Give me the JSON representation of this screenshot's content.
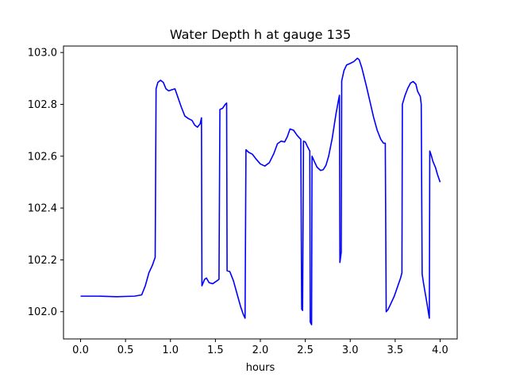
{
  "chart_data": {
    "type": "line",
    "title": "Water Depth h at gauge 135",
    "xlabel": "hours",
    "ylabel": "",
    "xlim": [
      -0.19,
      4.19
    ],
    "ylim": [
      101.895,
      103.025
    ],
    "grid": false,
    "x_ticks": [
      0.0,
      0.5,
      1.0,
      1.5,
      2.0,
      2.5,
      3.0,
      3.5,
      4.0
    ],
    "x_tick_labels": [
      "0.0",
      "0.5",
      "1.0",
      "1.5",
      "2.0",
      "2.5",
      "3.0",
      "3.5",
      "4.0"
    ],
    "y_ticks": [
      102.0,
      102.2,
      102.4,
      102.6,
      102.8,
      103.0
    ],
    "y_tick_labels": [
      "102.0",
      "102.2",
      "102.4",
      "102.6",
      "102.8",
      "103.0"
    ],
    "series": [
      {
        "color": "#0000ff",
        "points": [
          [
            0.0,
            102.06
          ],
          [
            0.2,
            102.06
          ],
          [
            0.4,
            102.058
          ],
          [
            0.6,
            102.06
          ],
          [
            0.68,
            102.065
          ],
          [
            0.72,
            102.1
          ],
          [
            0.76,
            102.15
          ],
          [
            0.8,
            102.18
          ],
          [
            0.83,
            102.21
          ],
          [
            0.84,
            102.86
          ],
          [
            0.86,
            102.885
          ],
          [
            0.89,
            102.893
          ],
          [
            0.92,
            102.885
          ],
          [
            0.95,
            102.86
          ],
          [
            0.98,
            102.852
          ],
          [
            1.02,
            102.857
          ],
          [
            1.05,
            102.86
          ],
          [
            1.08,
            102.83
          ],
          [
            1.12,
            102.79
          ],
          [
            1.16,
            102.755
          ],
          [
            1.2,
            102.745
          ],
          [
            1.24,
            102.738
          ],
          [
            1.27,
            102.72
          ],
          [
            1.3,
            102.712
          ],
          [
            1.33,
            102.725
          ],
          [
            1.345,
            102.748
          ],
          [
            1.35,
            102.1
          ],
          [
            1.38,
            102.125
          ],
          [
            1.4,
            102.13
          ],
          [
            1.43,
            102.112
          ],
          [
            1.47,
            102.108
          ],
          [
            1.52,
            102.12
          ],
          [
            1.54,
            102.125
          ],
          [
            1.55,
            102.78
          ],
          [
            1.58,
            102.785
          ],
          [
            1.61,
            102.8
          ],
          [
            1.625,
            102.805
          ],
          [
            1.63,
            102.158
          ],
          [
            1.66,
            102.155
          ],
          [
            1.7,
            102.12
          ],
          [
            1.74,
            102.07
          ],
          [
            1.78,
            102.02
          ],
          [
            1.81,
            101.99
          ],
          [
            1.83,
            101.975
          ],
          [
            1.84,
            102.625
          ],
          [
            1.87,
            102.615
          ],
          [
            1.91,
            102.608
          ],
          [
            1.95,
            102.59
          ],
          [
            2.0,
            102.57
          ],
          [
            2.05,
            102.562
          ],
          [
            2.1,
            102.575
          ],
          [
            2.15,
            102.61
          ],
          [
            2.19,
            102.648
          ],
          [
            2.23,
            102.658
          ],
          [
            2.27,
            102.655
          ],
          [
            2.3,
            102.675
          ],
          [
            2.33,
            102.705
          ],
          [
            2.37,
            102.7
          ],
          [
            2.41,
            102.68
          ],
          [
            2.45,
            102.665
          ],
          [
            2.46,
            102.01
          ],
          [
            2.47,
            102.005
          ],
          [
            2.48,
            102.658
          ],
          [
            2.5,
            102.655
          ],
          [
            2.52,
            102.64
          ],
          [
            2.55,
            102.62
          ],
          [
            2.555,
            101.96
          ],
          [
            2.57,
            101.95
          ],
          [
            2.575,
            102.6
          ],
          [
            2.6,
            102.58
          ],
          [
            2.63,
            102.558
          ],
          [
            2.67,
            102.545
          ],
          [
            2.7,
            102.548
          ],
          [
            2.73,
            102.565
          ],
          [
            2.76,
            102.6
          ],
          [
            2.8,
            102.67
          ],
          [
            2.84,
            102.76
          ],
          [
            2.87,
            102.818
          ],
          [
            2.88,
            102.835
          ],
          [
            2.885,
            102.19
          ],
          [
            2.9,
            102.23
          ],
          [
            2.905,
            102.89
          ],
          [
            2.93,
            102.93
          ],
          [
            2.96,
            102.952
          ],
          [
            3.0,
            102.958
          ],
          [
            3.04,
            102.965
          ],
          [
            3.08,
            102.978
          ],
          [
            3.1,
            102.972
          ],
          [
            3.13,
            102.94
          ],
          [
            3.18,
            102.87
          ],
          [
            3.22,
            102.81
          ],
          [
            3.26,
            102.75
          ],
          [
            3.3,
            102.7
          ],
          [
            3.34,
            102.665
          ],
          [
            3.37,
            102.65
          ],
          [
            3.39,
            102.65
          ],
          [
            3.4,
            102.0
          ],
          [
            3.42,
            102.008
          ],
          [
            3.45,
            102.03
          ],
          [
            3.49,
            102.06
          ],
          [
            3.53,
            102.1
          ],
          [
            3.56,
            102.13
          ],
          [
            3.575,
            102.15
          ],
          [
            3.58,
            102.8
          ],
          [
            3.61,
            102.835
          ],
          [
            3.64,
            102.862
          ],
          [
            3.67,
            102.882
          ],
          [
            3.7,
            102.888
          ],
          [
            3.73,
            102.878
          ],
          [
            3.75,
            102.85
          ],
          [
            3.78,
            102.83
          ],
          [
            3.79,
            102.8
          ],
          [
            3.8,
            102.145
          ],
          [
            3.82,
            102.1
          ],
          [
            3.85,
            102.04
          ],
          [
            3.88,
            101.975
          ],
          [
            3.885,
            102.62
          ],
          [
            3.9,
            102.605
          ],
          [
            3.92,
            102.58
          ],
          [
            3.95,
            102.555
          ],
          [
            3.97,
            102.53
          ],
          [
            4.0,
            102.5
          ]
        ]
      }
    ]
  }
}
